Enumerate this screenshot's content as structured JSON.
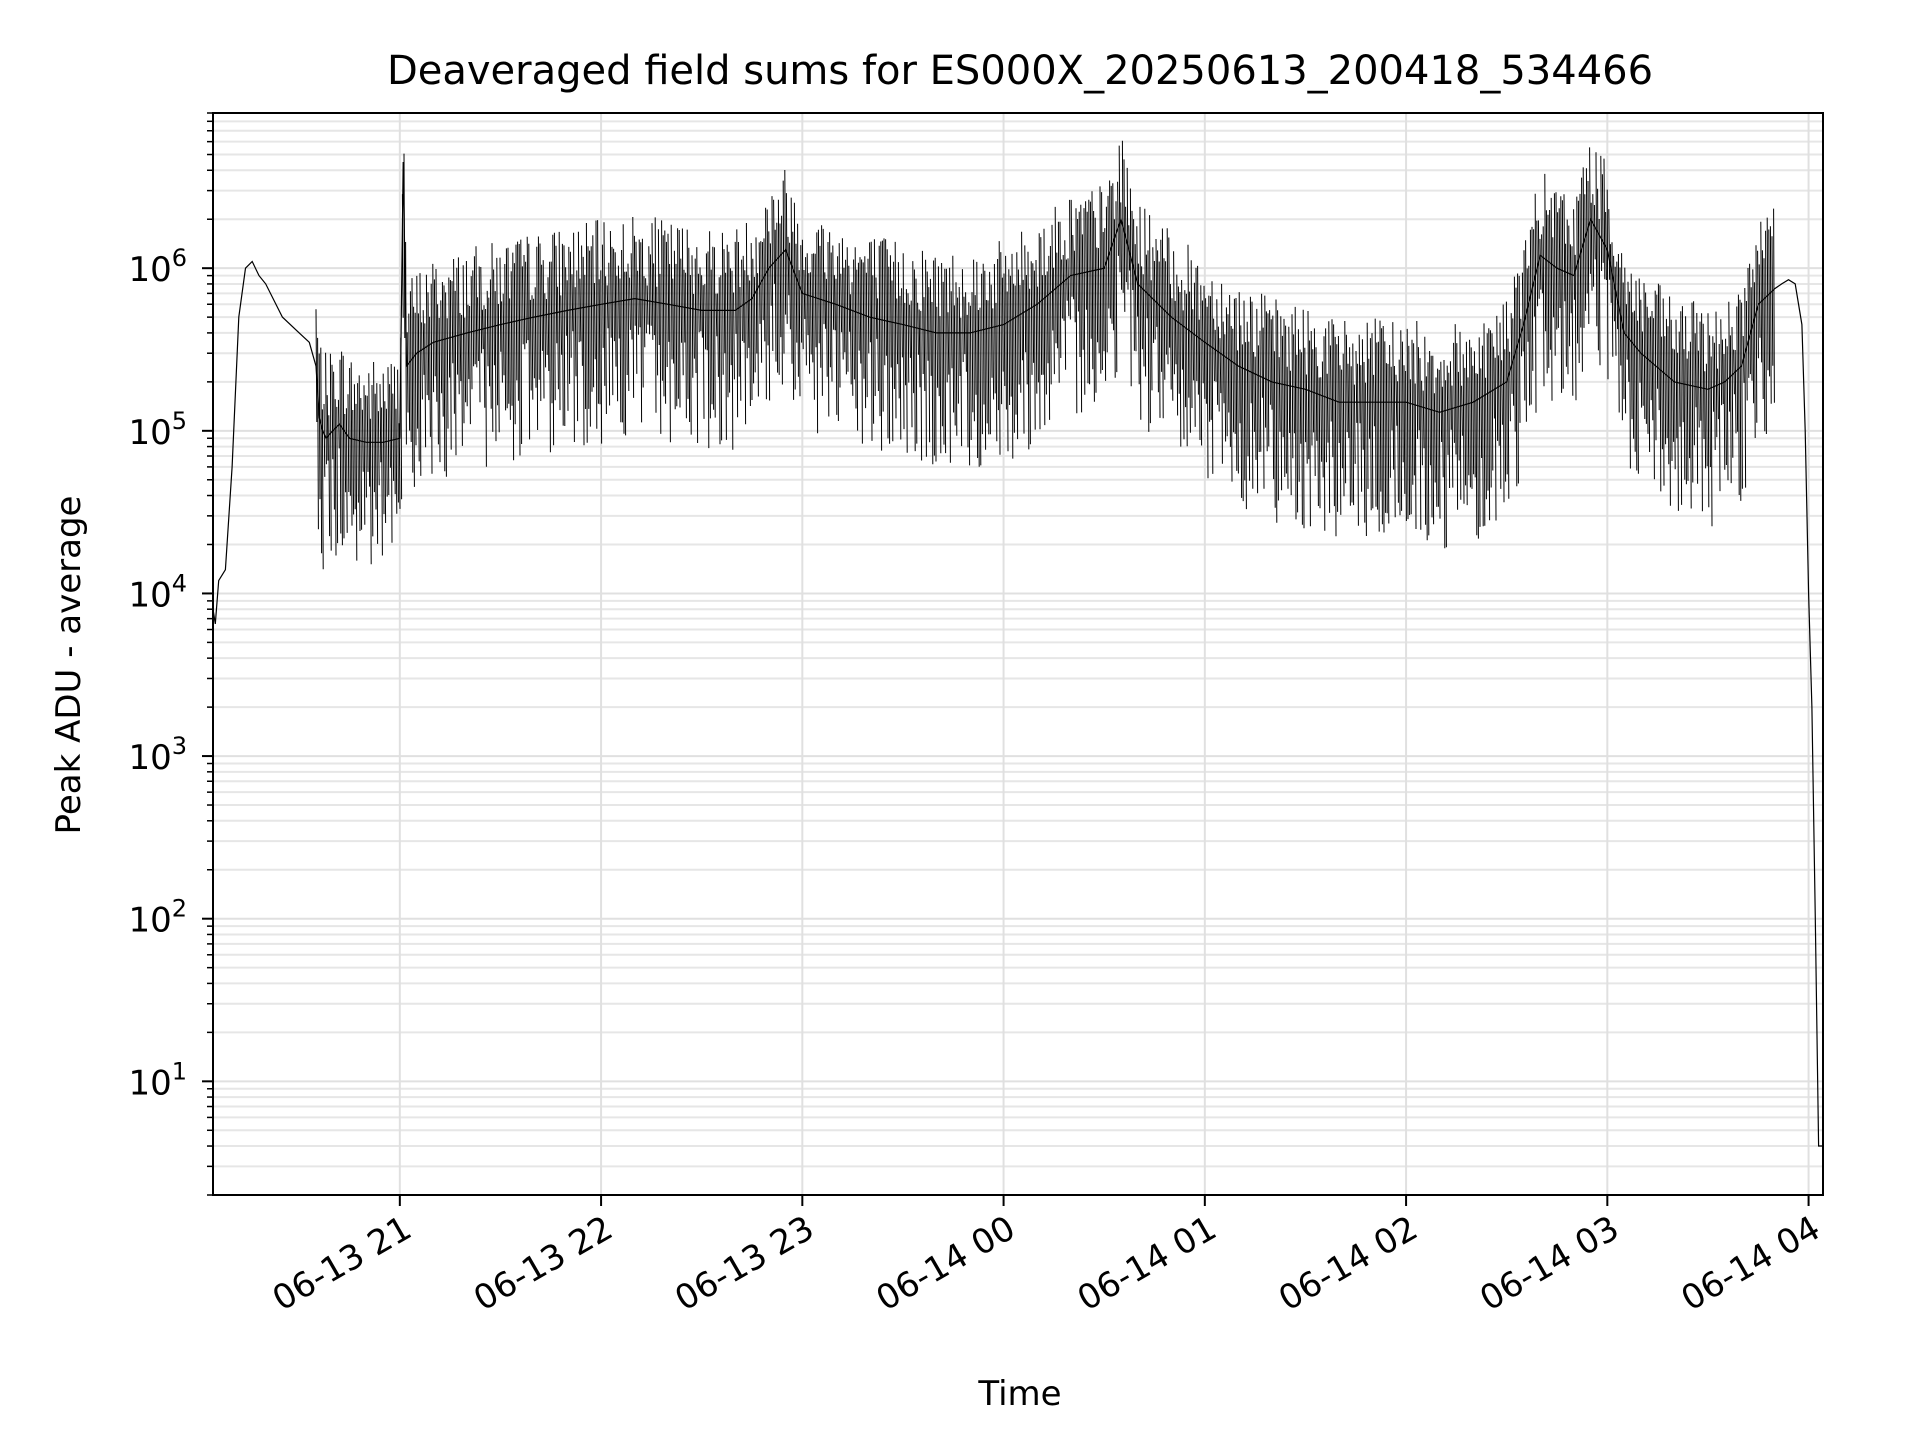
{
  "chart_data": {
    "type": "line",
    "title": "Deaveraged field sums for ES000X_20250613_200418_534466",
    "xlabel": "Time",
    "ylabel": "Peak ADU - average",
    "yscale": "log",
    "ylim": [
      2,
      9000000
    ],
    "xlim": [
      "2025-06-13 20:04:18",
      "2025-06-14 04:04:18"
    ],
    "grid": true,
    "line_color": "#000000",
    "x_ticks": [
      {
        "t": "2025-06-13 21:00",
        "label": "06-13 21"
      },
      {
        "t": "2025-06-13 22:00",
        "label": "06-13 22"
      },
      {
        "t": "2025-06-13 23:00",
        "label": "06-13 23"
      },
      {
        "t": "2025-06-14 00:00",
        "label": "06-14 00"
      },
      {
        "t": "2025-06-14 01:00",
        "label": "06-14 01"
      },
      {
        "t": "2025-06-14 02:00",
        "label": "06-14 02"
      },
      {
        "t": "2025-06-14 03:00",
        "label": "06-14 03"
      },
      {
        "t": "2025-06-14 04:00",
        "label": "06-14 04"
      }
    ],
    "y_ticks": [
      {
        "exp": 1,
        "base": "10",
        "sup": "1"
      },
      {
        "exp": 2,
        "base": "10",
        "sup": "2"
      },
      {
        "exp": 3,
        "base": "10",
        "sup": "3"
      },
      {
        "exp": 4,
        "base": "10",
        "sup": "4"
      },
      {
        "exp": 5,
        "base": "10",
        "sup": "5"
      },
      {
        "exp": 6,
        "base": "10",
        "sup": "6"
      }
    ],
    "series": [
      {
        "x": [
          "2025-06-13 20:04:18",
          "2025-06-13 20:05:00",
          "2025-06-13 20:06:00",
          "2025-06-13 20:08:00",
          "2025-06-13 20:10:00",
          "2025-06-13 20:12:00",
          "2025-06-13 20:14:00",
          "2025-06-13 20:16:00",
          "2025-06-13 20:18:00",
          "2025-06-13 20:20:00",
          "2025-06-13 20:25:00",
          "2025-06-13 20:30:00",
          "2025-06-13 20:33:00",
          "2025-06-13 20:35:00",
          "2025-06-13 20:36:00",
          "2025-06-13 20:37:00",
          "2025-06-13 20:38:00",
          "2025-06-13 20:40:00",
          "2025-06-13 20:42:00",
          "2025-06-13 20:45:00",
          "2025-06-13 20:50:00",
          "2025-06-13 20:55:00",
          "2025-06-13 21:00:00",
          "2025-06-13 21:01:00",
          "2025-06-13 21:02:00",
          "2025-06-13 21:05:00",
          "2025-06-13 21:10:00",
          "2025-06-13 21:20:00",
          "2025-06-13 21:30:00",
          "2025-06-13 21:40:00",
          "2025-06-13 21:50:00",
          "2025-06-13 22:00:00",
          "2025-06-13 22:10:00",
          "2025-06-13 22:20:00",
          "2025-06-13 22:30:00",
          "2025-06-13 22:40:00",
          "2025-06-13 22:45:00",
          "2025-06-13 22:50:00",
          "2025-06-13 22:55:00",
          "2025-06-13 23:00:00",
          "2025-06-13 23:10:00",
          "2025-06-13 23:20:00",
          "2025-06-13 23:30:00",
          "2025-06-13 23:40:00",
          "2025-06-13 23:50:00",
          "2025-06-14 00:00:00",
          "2025-06-14 00:10:00",
          "2025-06-14 00:20:00",
          "2025-06-14 00:30:00",
          "2025-06-14 00:35:00",
          "2025-06-14 00:40:00",
          "2025-06-14 00:50:00",
          "2025-06-14 01:00:00",
          "2025-06-14 01:10:00",
          "2025-06-14 01:20:00",
          "2025-06-14 01:30:00",
          "2025-06-14 01:40:00",
          "2025-06-14 01:50:00",
          "2025-06-14 02:00:00",
          "2025-06-14 02:10:00",
          "2025-06-14 02:20:00",
          "2025-06-14 02:30:00",
          "2025-06-14 02:35:00",
          "2025-06-14 02:40:00",
          "2025-06-14 02:45:00",
          "2025-06-14 02:50:00",
          "2025-06-14 02:55:00",
          "2025-06-14 03:00:00",
          "2025-06-14 03:05:00",
          "2025-06-14 03:10:00",
          "2025-06-14 03:20:00",
          "2025-06-14 03:30:00",
          "2025-06-14 03:35:00",
          "2025-06-14 03:40:00",
          "2025-06-14 03:45:00",
          "2025-06-14 03:50:00",
          "2025-06-14 03:52:00",
          "2025-06-14 03:54:00",
          "2025-06-14 03:56:00",
          "2025-06-14 03:58:00",
          "2025-06-14 03:59:00",
          "2025-06-14 04:00:00",
          "2025-06-14 04:01:00",
          "2025-06-14 04:02:00",
          "2025-06-14 04:03:00",
          "2025-06-14 04:04:18"
        ],
        "y": [
          8000,
          6500,
          12000,
          14000,
          60000,
          500000,
          1000000,
          1100000,
          900000,
          800000,
          500000,
          400000,
          350000,
          250000,
          120000,
          100000,
          90000,
          100000,
          110000,
          90000,
          85000,
          85000,
          90000,
          4500000,
          250000,
          300000,
          350000,
          400000,
          450000,
          500000,
          550000,
          600000,
          650000,
          600000,
          550000,
          550000,
          650000,
          1000000,
          1300000,
          700000,
          600000,
          500000,
          450000,
          400000,
          400000,
          450000,
          600000,
          900000,
          1000000,
          2000000,
          800000,
          500000,
          350000,
          250000,
          200000,
          180000,
          150000,
          150000,
          150000,
          130000,
          150000,
          200000,
          450000,
          1200000,
          1000000,
          900000,
          2000000,
          1300000,
          400000,
          300000,
          200000,
          180000,
          200000,
          250000,
          600000,
          750000,
          800000,
          850000,
          800000,
          450000,
          100000,
          10000,
          2000,
          100,
          4,
          4
        ]
      }
    ]
  }
}
